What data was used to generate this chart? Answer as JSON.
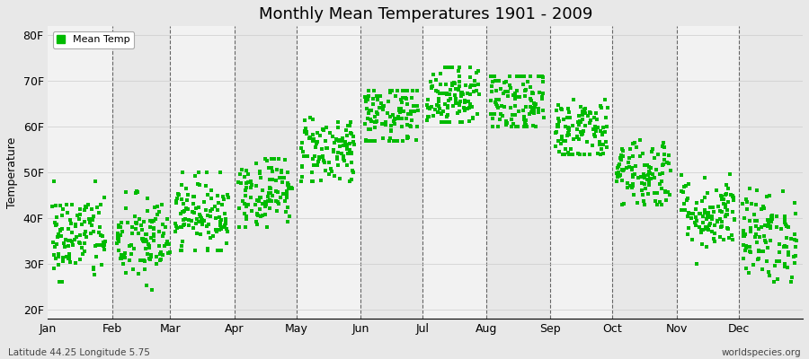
{
  "title": "Monthly Mean Temperatures 1901 - 2009",
  "ylabel": "Temperature",
  "xlabel_labels": [
    "Jan",
    "Feb",
    "Mar",
    "Apr",
    "May",
    "Jun",
    "Jul",
    "Aug",
    "Sep",
    "Oct",
    "Nov",
    "Dec"
  ],
  "ytick_labels": [
    "20F",
    "30F",
    "40F",
    "50F",
    "60F",
    "70F",
    "80F"
  ],
  "ytick_values": [
    20,
    30,
    40,
    50,
    60,
    70,
    80
  ],
  "ylim": [
    18,
    82
  ],
  "legend_label": "Mean Temp",
  "dot_color": "#00bb00",
  "bg_color": "#e8e8e8",
  "plot_bg_color": "#f2f2f2",
  "bottom_left_text": "Latitude 44.25 Longitude 5.75",
  "bottom_right_text": "worldspecies.org",
  "n_years": 109,
  "monthly_means_F": [
    36,
    35,
    41,
    46,
    55,
    62,
    67,
    65,
    59,
    50,
    41,
    36
  ],
  "monthly_std_F": [
    5,
    5,
    4,
    4,
    4,
    4,
    4,
    4,
    4,
    4,
    4,
    5
  ],
  "monthly_min_F": [
    26,
    24,
    33,
    38,
    48,
    57,
    61,
    60,
    54,
    43,
    30,
    26
  ],
  "monthly_max_F": [
    48,
    46,
    50,
    53,
    62,
    68,
    73,
    71,
    66,
    60,
    52,
    48
  ],
  "month_days": [
    15,
    46,
    74,
    105,
    135,
    166,
    196,
    227,
    258,
    288,
    319,
    349
  ],
  "month_starts": [
    0,
    31,
    59,
    90,
    120,
    151,
    181,
    212,
    243,
    273,
    304,
    334
  ],
  "total_days": 365,
  "vline_positions": [
    31,
    59,
    90,
    120,
    151,
    181,
    212,
    243,
    273,
    304,
    334
  ]
}
